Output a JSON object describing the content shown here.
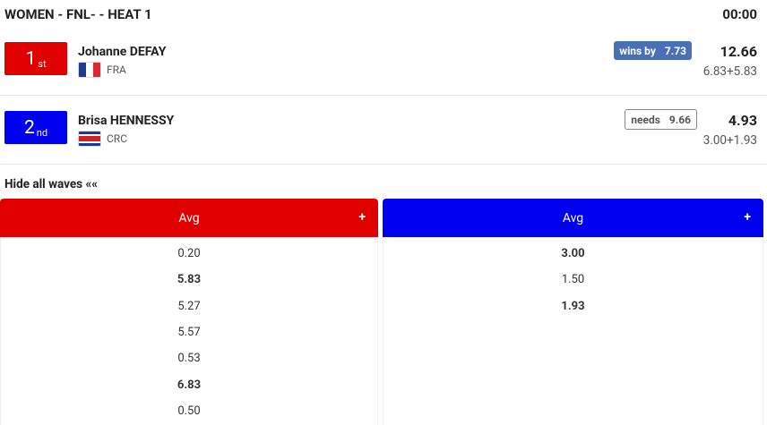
{
  "header": {
    "title": "WOMEN - FNL- - HEAT 1",
    "clock": "00:00"
  },
  "athletes": [
    {
      "place": "1",
      "suffix": "st",
      "name": "Johanne DEFAY",
      "country": "FRA",
      "status_label": "wins by",
      "status_value": "7.73",
      "total": "12.66",
      "breakdown": "6.83+5.83",
      "color": "#e00000"
    },
    {
      "place": "2",
      "suffix": "nd",
      "name": "Brisa HENNESSY",
      "country": "CRC",
      "status_label": "needs",
      "status_value": "9.66",
      "total": "4.93",
      "breakdown": "3.00+1.93",
      "color": "#0000f0"
    }
  ],
  "toggle": "Hide all waves ««",
  "columns": [
    {
      "title": "Avg",
      "button": "+",
      "color": "#e00000",
      "waves": [
        {
          "score": "0.20",
          "best": false
        },
        {
          "score": "5.83",
          "best": true
        },
        {
          "score": "5.27",
          "best": false
        },
        {
          "score": "5.57",
          "best": false
        },
        {
          "score": "0.53",
          "best": false
        },
        {
          "score": "6.83",
          "best": true
        },
        {
          "score": "0.50",
          "best": false
        }
      ]
    },
    {
      "title": "Avg",
      "button": "+",
      "color": "#0000f0",
      "waves": [
        {
          "score": "3.00",
          "best": true
        },
        {
          "score": "1.50",
          "best": false
        },
        {
          "score": "1.93",
          "best": true
        }
      ]
    }
  ]
}
